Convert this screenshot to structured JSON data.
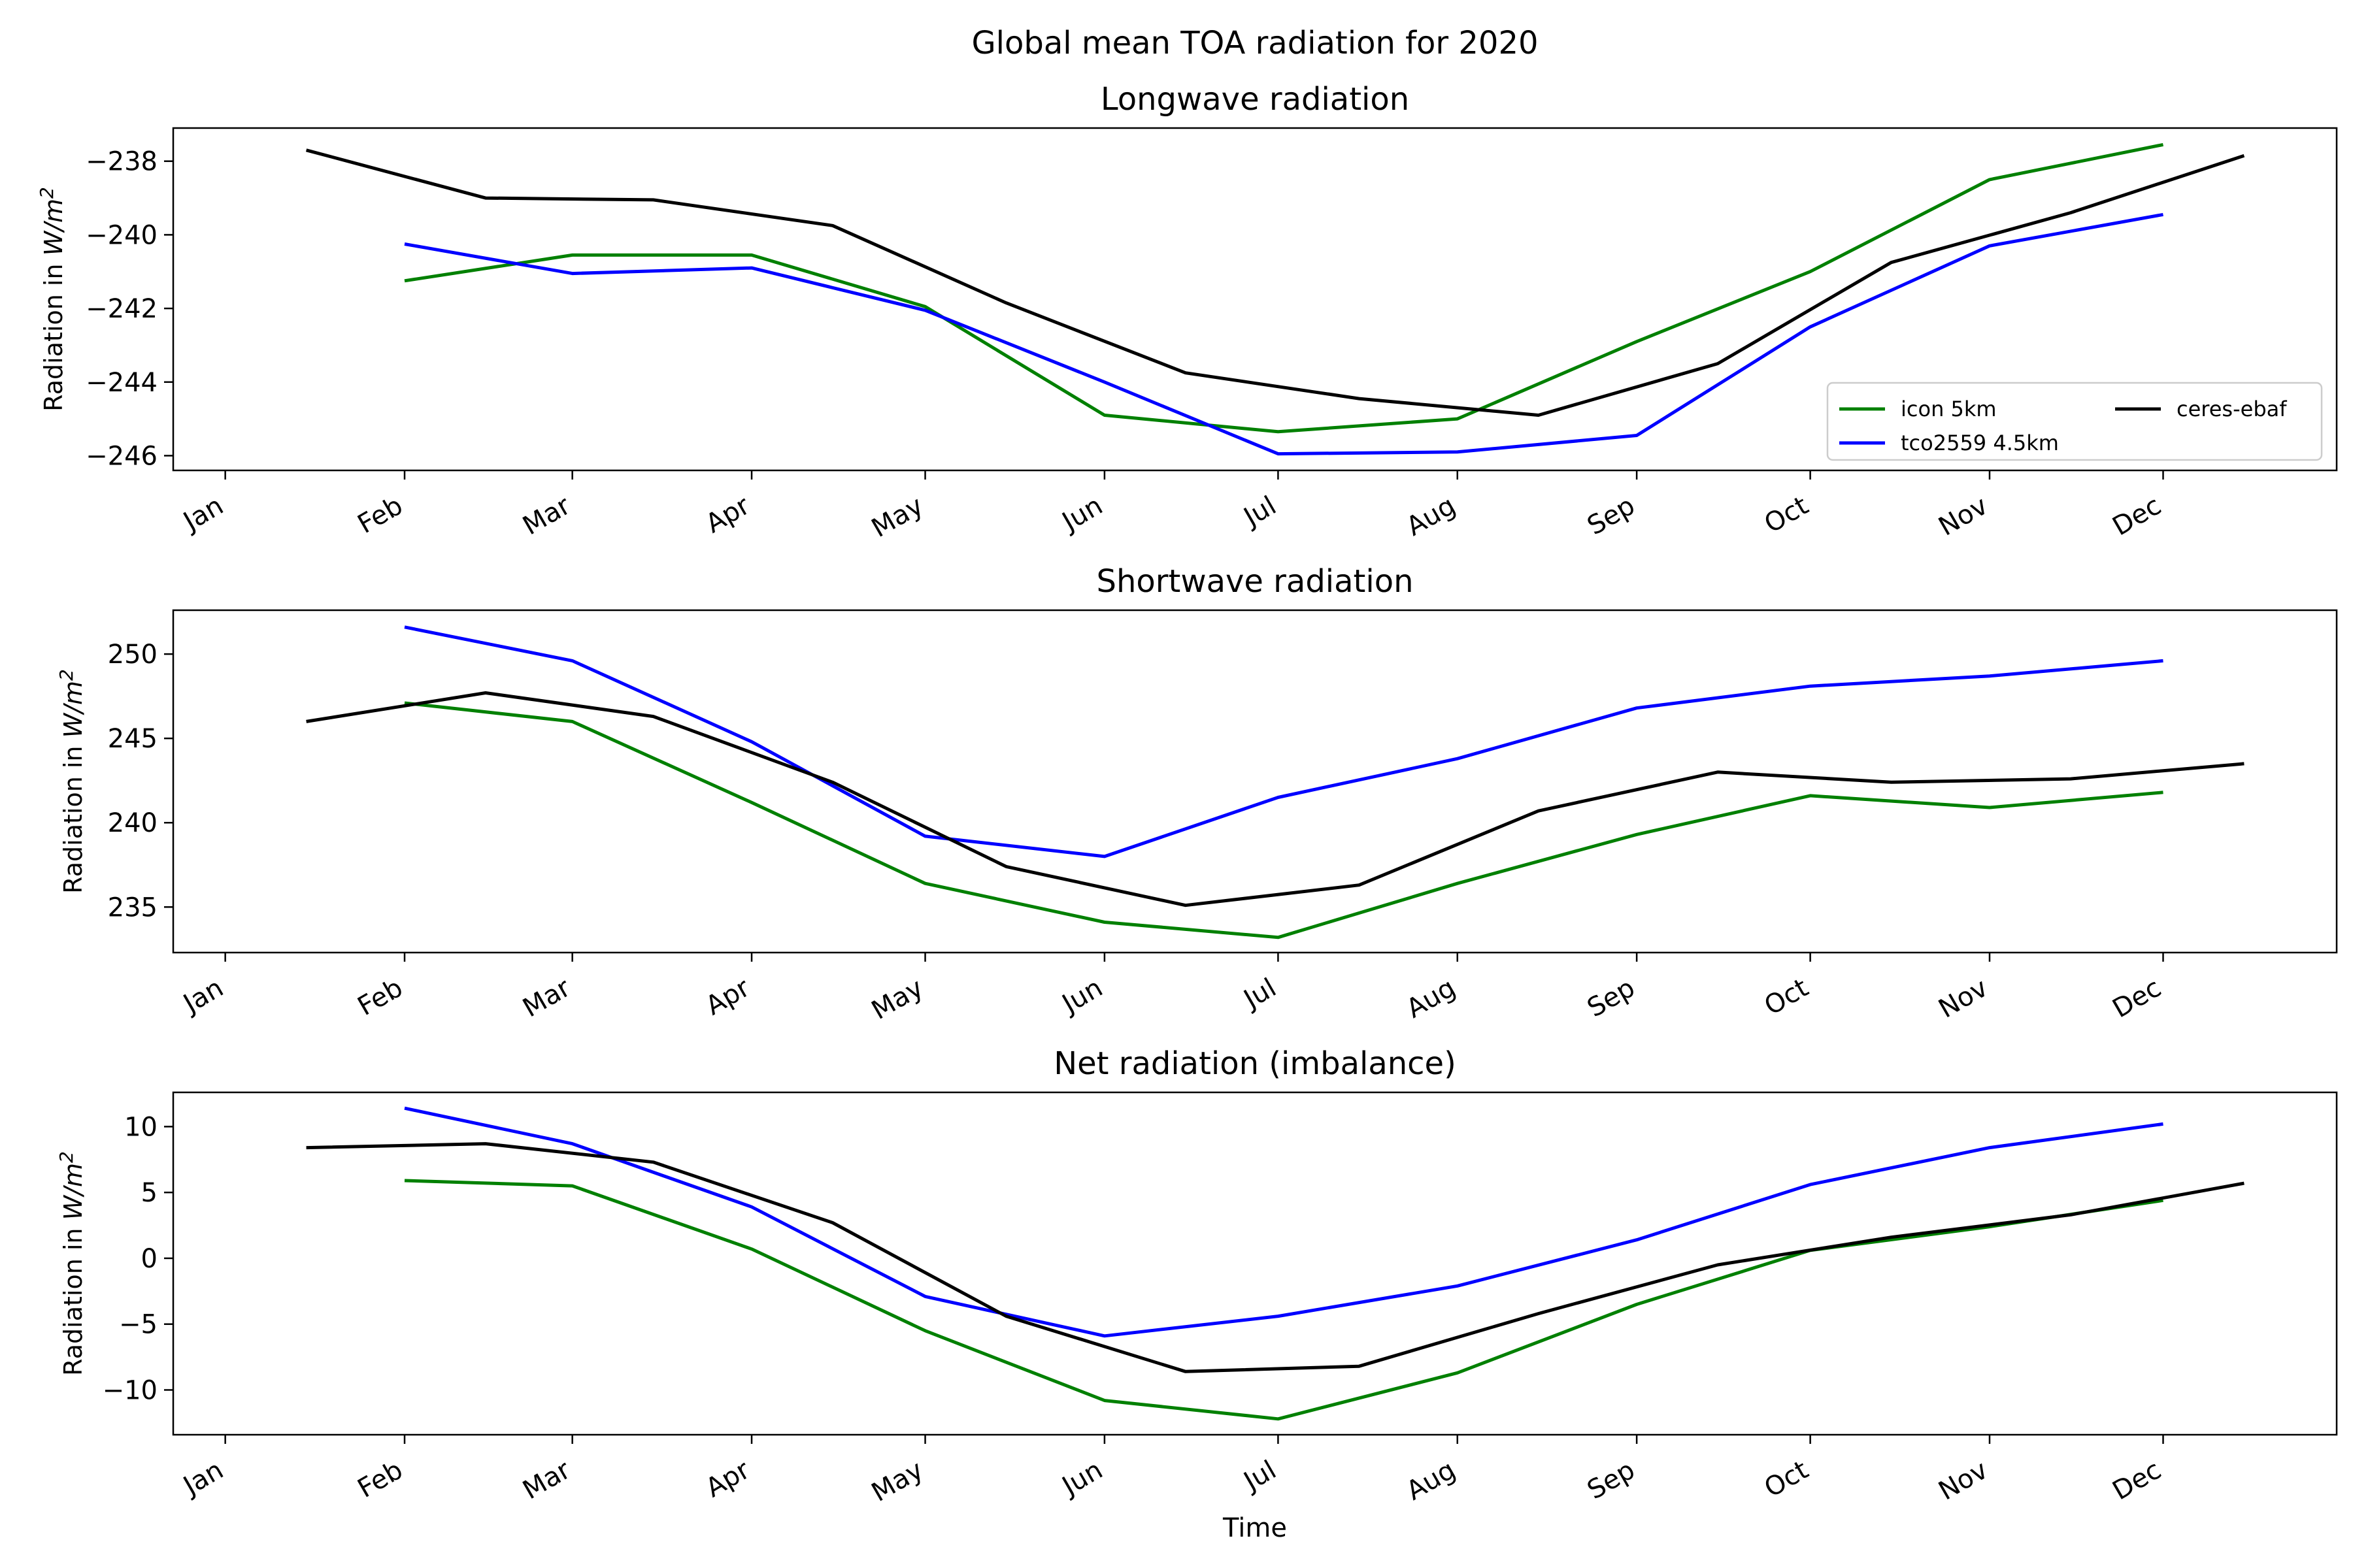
{
  "figure": {
    "suptitle": "Global mean TOA radiation for 2020",
    "xlabel": "Time"
  },
  "months": [
    "Jan",
    "Feb",
    "Mar",
    "Apr",
    "May",
    "Jun",
    "Jul",
    "Aug",
    "Sep",
    "Oct",
    "Nov",
    "Dec"
  ],
  "series_styles": [
    {
      "name": "icon 5km",
      "color": "#008000"
    },
    {
      "name": " tco2559 4.5km",
      "color": "#0000ff"
    },
    {
      "name": "ceres-ebaf",
      "color": "#000000"
    }
  ],
  "chart_data": [
    {
      "type": "line",
      "title": "Longwave radiation",
      "ylabel": "Radiation in W/m²",
      "ylim": [
        -246.4,
        -237.1
      ],
      "yticks": [
        -246,
        -244,
        -242,
        -240,
        -238
      ],
      "ytick_labels": [
        "−246",
        "−244",
        "−242",
        "−240",
        "−238"
      ],
      "legend": "lower-right",
      "series": [
        {
          "name": "icon 5km",
          "x": [
            "2020-02-01",
            "2020-03-01",
            "2020-04-01",
            "2020-05-01",
            "2020-06-01",
            "2020-07-01",
            "2020-08-01",
            "2020-09-01",
            "2020-10-01",
            "2020-11-01",
            "2020-12-01"
          ],
          "y": [
            -241.25,
            -240.55,
            -240.55,
            -241.95,
            -244.9,
            -245.35,
            -245.0,
            -242.9,
            -241.0,
            -238.5,
            -237.55
          ]
        },
        {
          "name": " tco2559 4.5km",
          "x": [
            "2020-02-01",
            "2020-03-01",
            "2020-04-01",
            "2020-05-01",
            "2020-06-01",
            "2020-07-01",
            "2020-08-01",
            "2020-09-01",
            "2020-10-01",
            "2020-11-01",
            "2020-12-01"
          ],
          "y": [
            -240.25,
            -241.05,
            -240.9,
            -242.05,
            -244.0,
            -245.95,
            -245.9,
            -245.45,
            -242.5,
            -240.3,
            -239.45
          ]
        },
        {
          "name": "ceres-ebaf",
          "x": [
            "2020-01-15",
            "2020-02-15",
            "2020-03-15",
            "2020-04-15",
            "2020-05-15",
            "2020-06-15",
            "2020-07-15",
            "2020-08-15",
            "2020-09-15",
            "2020-10-15",
            "2020-11-15",
            "2020-12-15"
          ],
          "y": [
            -237.7,
            -239.0,
            -239.05,
            -239.75,
            -241.85,
            -243.75,
            -244.45,
            -244.9,
            -243.5,
            -240.75,
            -239.4,
            -237.85
          ]
        }
      ]
    },
    {
      "type": "line",
      "title": "Shortwave radiation",
      "ylabel": "Radiation in W/m²",
      "ylim": [
        232.3,
        252.6
      ],
      "yticks": [
        235,
        240,
        245,
        250
      ],
      "ytick_labels": [
        "235",
        "240",
        "245",
        "250"
      ],
      "legend": "none",
      "series": [
        {
          "name": "icon 5km",
          "x": [
            "2020-02-01",
            "2020-03-01",
            "2020-04-01",
            "2020-05-01",
            "2020-06-01",
            "2020-07-01",
            "2020-08-01",
            "2020-09-01",
            "2020-10-01",
            "2020-11-01",
            "2020-12-01"
          ],
          "y": [
            247.1,
            246.0,
            241.2,
            236.4,
            234.1,
            233.2,
            236.4,
            239.3,
            241.6,
            240.9,
            241.8
          ]
        },
        {
          "name": " tco2559 4.5km",
          "x": [
            "2020-02-01",
            "2020-03-01",
            "2020-04-01",
            "2020-05-01",
            "2020-06-01",
            "2020-07-01",
            "2020-08-01",
            "2020-09-01",
            "2020-10-01",
            "2020-11-01",
            "2020-12-01"
          ],
          "y": [
            251.6,
            249.6,
            244.8,
            239.2,
            238.0,
            241.5,
            243.8,
            246.8,
            248.1,
            248.7,
            249.6
          ]
        },
        {
          "name": "ceres-ebaf",
          "x": [
            "2020-01-15",
            "2020-02-15",
            "2020-03-15",
            "2020-04-15",
            "2020-05-15",
            "2020-06-15",
            "2020-07-15",
            "2020-08-15",
            "2020-09-15",
            "2020-10-15",
            "2020-11-15",
            "2020-12-15"
          ],
          "y": [
            246.0,
            247.7,
            246.3,
            242.4,
            237.4,
            235.1,
            236.3,
            240.7,
            243.0,
            242.4,
            242.6,
            243.5
          ]
        }
      ]
    },
    {
      "type": "line",
      "title": "Net radiation (imbalance)",
      "ylabel": "Radiation in W/m²",
      "ylim": [
        -13.4,
        12.6
      ],
      "yticks": [
        -10,
        -5,
        0,
        5,
        10
      ],
      "ytick_labels": [
        "−10",
        "−5",
        "0",
        "5",
        "10"
      ],
      "legend": "none",
      "series": [
        {
          "name": "icon 5km",
          "x": [
            "2020-02-01",
            "2020-03-01",
            "2020-04-01",
            "2020-05-01",
            "2020-06-01",
            "2020-07-01",
            "2020-08-01",
            "2020-09-01",
            "2020-10-01",
            "2020-11-01",
            "2020-12-01"
          ],
          "y": [
            5.9,
            5.5,
            0.7,
            -5.5,
            -10.8,
            -12.2,
            -8.7,
            -3.5,
            0.6,
            2.4,
            4.4
          ]
        },
        {
          "name": " tco2559 4.5km",
          "x": [
            "2020-02-01",
            "2020-03-01",
            "2020-04-01",
            "2020-05-01",
            "2020-06-01",
            "2020-07-01",
            "2020-08-01",
            "2020-09-01",
            "2020-10-01",
            "2020-11-01",
            "2020-12-01"
          ],
          "y": [
            11.4,
            8.7,
            3.9,
            -2.9,
            -5.9,
            -4.4,
            -2.1,
            1.4,
            5.6,
            8.4,
            10.2
          ]
        },
        {
          "name": "ceres-ebaf",
          "x": [
            "2020-01-15",
            "2020-02-15",
            "2020-03-15",
            "2020-04-15",
            "2020-05-15",
            "2020-06-15",
            "2020-07-15",
            "2020-08-15",
            "2020-09-15",
            "2020-10-15",
            "2020-11-15",
            "2020-12-15"
          ],
          "y": [
            8.4,
            8.7,
            7.3,
            2.7,
            -4.4,
            -8.6,
            -8.2,
            -4.2,
            -0.5,
            1.6,
            3.3,
            5.7
          ]
        }
      ]
    }
  ]
}
